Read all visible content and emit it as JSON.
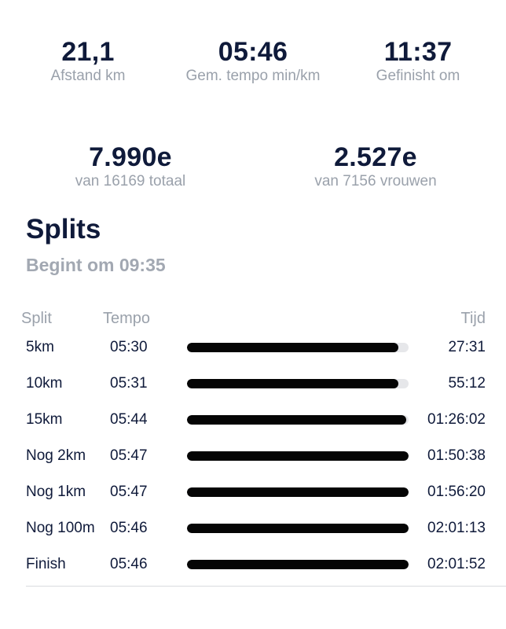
{
  "stats_top": [
    {
      "value": "21,1",
      "label": "Afstand km"
    },
    {
      "value": "05:46",
      "label": "Gem. tempo min/km"
    },
    {
      "value": "11:37",
      "label": "Gefinisht om"
    }
  ],
  "stats_rank": [
    {
      "value": "7.990e",
      "label": "van 16169 totaal"
    },
    {
      "value": "2.527e",
      "label": "van 7156 vrouwen"
    }
  ],
  "splits": {
    "title": "Splits",
    "start": "Begint om 09:35",
    "headers": {
      "split": "Split",
      "tempo": "Tempo",
      "time": "Tijd"
    },
    "rows": [
      {
        "name": "5km",
        "tempo": "05:30",
        "time": "27:31",
        "fill": 0.955
      },
      {
        "name": "10km",
        "tempo": "05:31",
        "time": "55:12",
        "fill": 0.955
      },
      {
        "name": "15km",
        "tempo": "05:44",
        "time": "01:26:02",
        "fill": 0.99
      },
      {
        "name": "Nog 2km",
        "tempo": "05:47",
        "time": "01:50:38",
        "fill": 1.0
      },
      {
        "name": "Nog 1km",
        "tempo": "05:47",
        "time": "01:56:20",
        "fill": 1.0
      },
      {
        "name": "Nog 100m",
        "tempo": "05:46",
        "time": "02:01:13",
        "fill": 1.0
      },
      {
        "name": "Finish",
        "tempo": "05:46",
        "time": "02:01:52",
        "fill": 1.0
      }
    ]
  }
}
